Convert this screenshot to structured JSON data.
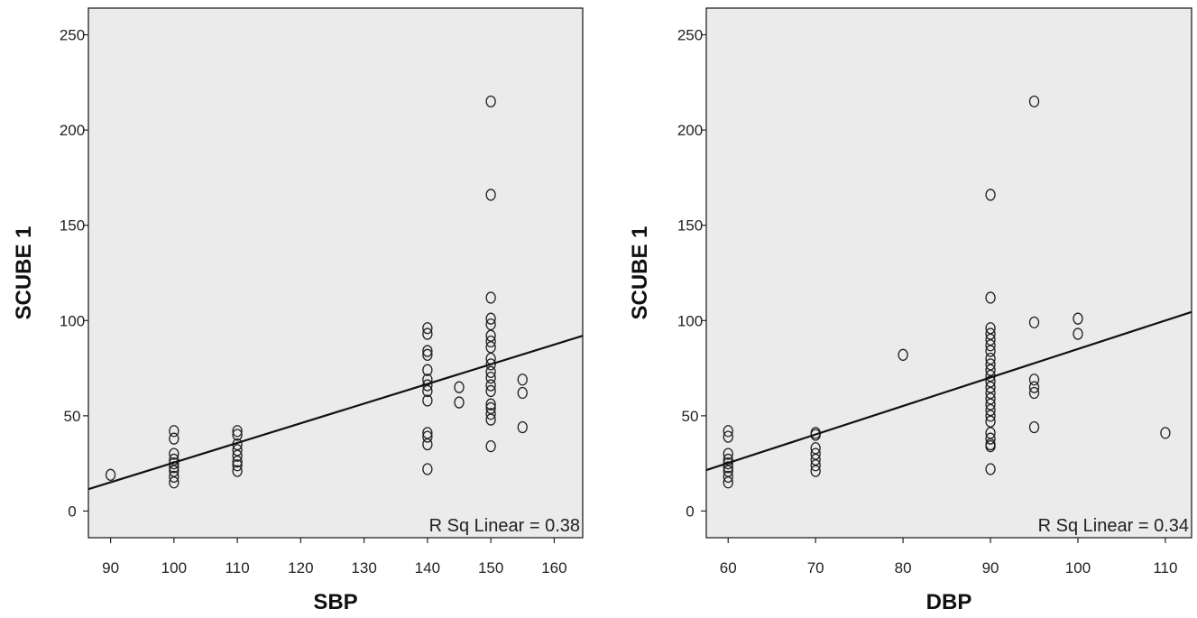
{
  "chart_data": [
    {
      "type": "scatter",
      "xlabel": "SBP",
      "ylabel": "SCUBE 1",
      "xlim": [
        86.5,
        164.5
      ],
      "ylim": [
        -14,
        264
      ],
      "xticks": [
        90,
        100,
        110,
        120,
        130,
        140,
        150,
        160
      ],
      "yticks": [
        0,
        50,
        100,
        150,
        200,
        250
      ],
      "annotation": "R Sq Linear = 0.38",
      "fit_line": {
        "x": [
          86.5,
          164.5
        ],
        "y": [
          11.5,
          92.0
        ]
      },
      "points": [
        [
          90,
          19
        ],
        [
          100,
          42
        ],
        [
          100,
          38
        ],
        [
          100,
          30
        ],
        [
          100,
          27
        ],
        [
          100,
          25
        ],
        [
          100,
          23
        ],
        [
          100,
          21
        ],
        [
          100,
          18
        ],
        [
          100,
          15
        ],
        [
          110,
          42
        ],
        [
          110,
          40
        ],
        [
          110,
          35
        ],
        [
          110,
          32
        ],
        [
          110,
          29
        ],
        [
          110,
          26
        ],
        [
          110,
          24
        ],
        [
          110,
          21
        ],
        [
          140,
          96
        ],
        [
          140,
          93
        ],
        [
          140,
          84
        ],
        [
          140,
          82
        ],
        [
          140,
          74
        ],
        [
          140,
          69
        ],
        [
          140,
          66
        ],
        [
          140,
          63
        ],
        [
          140,
          58
        ],
        [
          140,
          41
        ],
        [
          140,
          39
        ],
        [
          140,
          35
        ],
        [
          140,
          22
        ],
        [
          145,
          65
        ],
        [
          145,
          57
        ],
        [
          150,
          215
        ],
        [
          150,
          166
        ],
        [
          150,
          112
        ],
        [
          150,
          101
        ],
        [
          150,
          98
        ],
        [
          150,
          92
        ],
        [
          150,
          89
        ],
        [
          150,
          86
        ],
        [
          150,
          80
        ],
        [
          150,
          77
        ],
        [
          150,
          73
        ],
        [
          150,
          70
        ],
        [
          150,
          66
        ],
        [
          150,
          63
        ],
        [
          150,
          56
        ],
        [
          150,
          54
        ],
        [
          150,
          51
        ],
        [
          150,
          48
        ],
        [
          150,
          34
        ],
        [
          155,
          69
        ],
        [
          155,
          62
        ],
        [
          155,
          44
        ]
      ]
    },
    {
      "type": "scatter",
      "xlabel": "DBP",
      "ylabel": "SCUBE 1",
      "xlim": [
        57.5,
        113
      ],
      "ylim": [
        -14,
        264
      ],
      "xticks": [
        60,
        70,
        80,
        90,
        100,
        110
      ],
      "yticks": [
        0,
        50,
        100,
        150,
        200,
        250
      ],
      "annotation": "R Sq Linear = 0.34",
      "fit_line": {
        "x": [
          57.5,
          113
        ],
        "y": [
          21.5,
          104.5
        ]
      },
      "points": [
        [
          60,
          42
        ],
        [
          60,
          39
        ],
        [
          60,
          30
        ],
        [
          60,
          27
        ],
        [
          60,
          25
        ],
        [
          60,
          23
        ],
        [
          60,
          21
        ],
        [
          60,
          18
        ],
        [
          60,
          15
        ],
        [
          70,
          41
        ],
        [
          70,
          40
        ],
        [
          70,
          33
        ],
        [
          70,
          30
        ],
        [
          70,
          27
        ],
        [
          70,
          24
        ],
        [
          70,
          21
        ],
        [
          80,
          82
        ],
        [
          90,
          166
        ],
        [
          90,
          112
        ],
        [
          90,
          96
        ],
        [
          90,
          93
        ],
        [
          90,
          90
        ],
        [
          90,
          87
        ],
        [
          90,
          84
        ],
        [
          90,
          80
        ],
        [
          90,
          77
        ],
        [
          90,
          74
        ],
        [
          90,
          71
        ],
        [
          90,
          68
        ],
        [
          90,
          65
        ],
        [
          90,
          62
        ],
        [
          90,
          59
        ],
        [
          90,
          56
        ],
        [
          90,
          53
        ],
        [
          90,
          50
        ],
        [
          90,
          47
        ],
        [
          90,
          41
        ],
        [
          90,
          38
        ],
        [
          90,
          35
        ],
        [
          90,
          34
        ],
        [
          90,
          22
        ],
        [
          95,
          215
        ],
        [
          95,
          99
        ],
        [
          95,
          69
        ],
        [
          95,
          65
        ],
        [
          95,
          62
        ],
        [
          95,
          44
        ],
        [
          100,
          101
        ],
        [
          100,
          93
        ],
        [
          110,
          41
        ]
      ]
    }
  ]
}
